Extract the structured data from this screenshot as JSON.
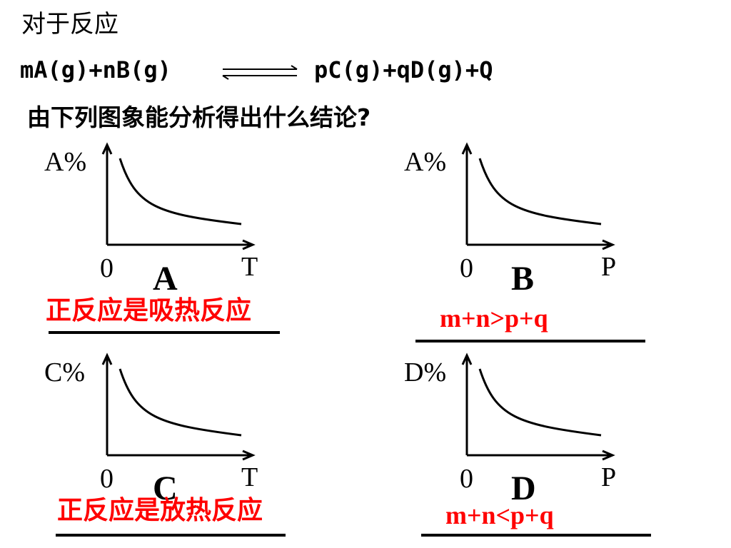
{
  "title": "对于反应",
  "equation": {
    "left": "mA(g)+nB(g)",
    "right": "pC(g)+qD(g)+Q"
  },
  "question": "由下列图象能分析得出什么结论?",
  "graphs": [
    {
      "id": "A",
      "ylabel": "A%",
      "origin": "0",
      "xlabel": "T",
      "letter": "A",
      "answer": "正反应是吸热反应"
    },
    {
      "id": "B",
      "ylabel": "A%",
      "origin": "0",
      "xlabel": "P",
      "letter": "B",
      "answer": "m+n>p+q"
    },
    {
      "id": "C",
      "ylabel": "C%",
      "origin": "0",
      "xlabel": "T",
      "letter": "C",
      "answer": "正反应是放热反应"
    },
    {
      "id": "D",
      "ylabel": "D%",
      "origin": "0",
      "xlabel": "P",
      "letter": "D",
      "answer": "m+n<p+q"
    }
  ],
  "colors": {
    "answer": "#ff0000",
    "line": "#000000"
  }
}
